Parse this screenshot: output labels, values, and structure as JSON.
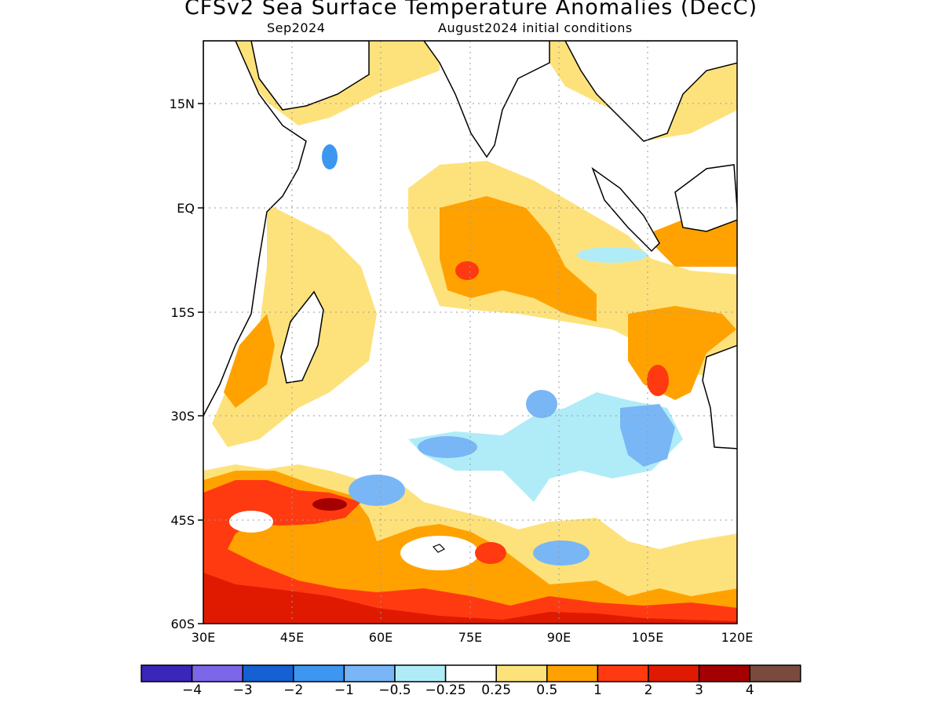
{
  "title": "CFSv2 Sea Surface Temperature Anomalies (DecC)",
  "subtitle_left": "Sep2024",
  "subtitle_right": "August2024 initial conditions",
  "map": {
    "lat_labels": [
      "15N",
      "EQ",
      "15S",
      "30S",
      "45S",
      "60S"
    ],
    "lon_labels": [
      "30E",
      "45E",
      "60E",
      "75E",
      "90E",
      "105E",
      "120E"
    ],
    "extent": {
      "lon_min": 30,
      "lon_max": 120,
      "lat_min": -60,
      "lat_max": 24
    },
    "grid": "dotted"
  },
  "colorbar": {
    "colors": [
      "#3a26b8",
      "#7c67e8",
      "#1560d2",
      "#3d96f0",
      "#79b6f6",
      "#b0ecf8",
      "#ffffff",
      "#fde27c",
      "#ffa200",
      "#ff3a10",
      "#e01a00",
      "#a50000",
      "#7a4a3e"
    ],
    "labels": [
      "−4",
      "−3",
      "−2",
      "−1",
      "−0.5",
      "−0.25",
      "0.25",
      "0.5",
      "1",
      "2",
      "3",
      "4"
    ]
  }
}
